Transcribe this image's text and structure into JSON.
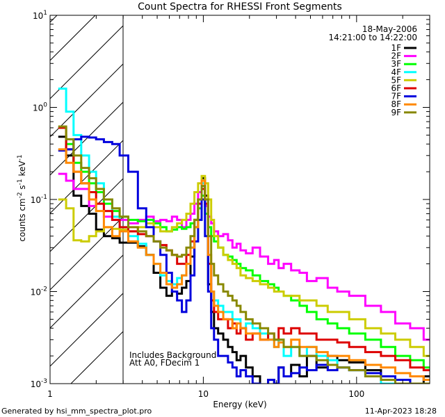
{
  "chart_data": {
    "type": "line",
    "title": "Count Spectra for RHESSI Front Segments",
    "xlabel": "Energy (keV)",
    "ylabel_parts": [
      "counts cm",
      "-2",
      " s",
      "-1",
      " keV",
      "-1"
    ],
    "xscale": "log",
    "yscale": "log",
    "xlim": [
      1,
      300
    ],
    "ylim": [
      0.001,
      10
    ],
    "xtick_labels": [
      {
        "value": 1,
        "label": "1"
      },
      {
        "value": 10,
        "label": "10"
      },
      {
        "value": 100,
        "label": "100"
      }
    ],
    "ytick_labels": [
      {
        "value": 0.001,
        "base": "10",
        "exp": "-3"
      },
      {
        "value": 0.01,
        "base": "10",
        "exp": "-2"
      },
      {
        "value": 0.1,
        "base": "10",
        "exp": "-1"
      },
      {
        "value": 1,
        "base": "10",
        "exp": "0"
      },
      {
        "value": 10,
        "base": "10",
        "exp": "1"
      }
    ],
    "shaded_region": {
      "x_from": 1,
      "x_to": 3,
      "pattern": "diagonal hatch"
    },
    "date_text": "18-May-2006",
    "time_text": "14:21:00 to 14:22:00",
    "annotations": [
      "Includes Background",
      "Att A0, FDecim 1"
    ],
    "footer_left": "Generated by hsi_mm_spectra_plot.pro",
    "footer_right": "11-Apr-2023 18:28",
    "series": [
      {
        "name": "1F",
        "color": "#000000",
        "x": [
          1.2,
          1.35,
          1.5,
          1.7,
          1.9,
          2.1,
          2.4,
          2.7,
          3.0,
          3.5,
          4.0,
          4.5,
          5.0,
          5.5,
          6.0,
          6.5,
          7.0,
          7.5,
          8.0,
          8.5,
          9.0,
          9.5,
          10.0,
          10.5,
          11.0,
          11.5,
          12.0,
          13.0,
          14.0,
          15.0,
          16.0,
          17.0,
          18.0,
          20.0,
          22.0,
          25.0,
          28.0,
          30.0,
          32.0,
          35.0,
          40.0,
          45.0,
          50.0,
          60.0,
          70.0,
          80.0,
          100.0,
          130.0,
          160.0,
          200.0,
          250.0,
          300.0
        ],
        "y": [
          0.48,
          0.3,
          0.11,
          0.085,
          0.07,
          0.047,
          0.04,
          0.038,
          0.034,
          0.034,
          0.031,
          0.025,
          0.016,
          0.011,
          0.009,
          0.01,
          0.0095,
          0.011,
          0.013,
          0.024,
          0.05,
          0.1,
          0.17,
          0.11,
          0.012,
          0.006,
          0.004,
          0.0035,
          0.003,
          0.0025,
          0.0022,
          0.0018,
          0.002,
          0.0015,
          0.0012,
          0.0008,
          0.0011,
          0.0009,
          0.0015,
          0.0012,
          0.0016,
          0.0012,
          0.002,
          0.0015,
          0.002,
          0.0018,
          0.0017,
          0.0014,
          0.0012,
          0.0011,
          0.001,
          0.0012
        ]
      },
      {
        "name": "2F",
        "color": "#ff00ff",
        "x": [
          1.2,
          1.35,
          1.5,
          1.7,
          1.9,
          2.1,
          2.4,
          2.7,
          3.0,
          3.5,
          4.0,
          4.5,
          5.0,
          5.5,
          6.0,
          6.5,
          7.0,
          7.5,
          8.0,
          8.5,
          9.0,
          9.5,
          10.0,
          10.5,
          11.0,
          11.5,
          12.0,
          13.0,
          14.0,
          15.0,
          16.0,
          17.0,
          18.0,
          20.0,
          22.0,
          25.0,
          28.0,
          30.0,
          32.0,
          35.0,
          40.0,
          45.0,
          50.0,
          60.0,
          70.0,
          80.0,
          100.0,
          130.0,
          160.0,
          200.0,
          250.0,
          300.0
        ],
        "y": [
          0.19,
          0.16,
          0.13,
          0.13,
          0.085,
          0.09,
          0.065,
          0.06,
          0.06,
          0.055,
          0.06,
          0.065,
          0.058,
          0.06,
          0.058,
          0.065,
          0.06,
          0.05,
          0.06,
          0.07,
          0.09,
          0.12,
          0.15,
          0.085,
          0.065,
          0.055,
          0.045,
          0.04,
          0.042,
          0.036,
          0.03,
          0.033,
          0.028,
          0.026,
          0.03,
          0.024,
          0.02,
          0.022,
          0.018,
          0.02,
          0.017,
          0.016,
          0.013,
          0.014,
          0.011,
          0.01,
          0.009,
          0.007,
          0.006,
          0.0045,
          0.004,
          0.003
        ]
      },
      {
        "name": "3F",
        "color": "#00ff00",
        "x": [
          1.2,
          1.35,
          1.5,
          1.7,
          1.9,
          2.1,
          2.4,
          2.7,
          3.0,
          3.5,
          4.0,
          4.5,
          5.0,
          5.5,
          6.0,
          6.5,
          7.0,
          7.5,
          8.0,
          8.5,
          9.0,
          9.5,
          10.0,
          10.5,
          11.0,
          11.5,
          12.0,
          13.0,
          14.0,
          15.0,
          16.0,
          17.0,
          18.0,
          20.0,
          22.0,
          25.0,
          28.0,
          30.0,
          32.0,
          35.0,
          40.0,
          45.0,
          50.0,
          60.0,
          70.0,
          80.0,
          100.0,
          130.0,
          160.0,
          200.0,
          250.0,
          300.0
        ],
        "y": [
          0.6,
          0.4,
          0.25,
          0.2,
          0.15,
          0.12,
          0.09,
          0.075,
          0.065,
          0.06,
          0.058,
          0.06,
          0.055,
          0.05,
          0.045,
          0.047,
          0.05,
          0.048,
          0.05,
          0.055,
          0.06,
          0.08,
          0.11,
          0.07,
          0.05,
          0.04,
          0.035,
          0.03,
          0.025,
          0.024,
          0.022,
          0.02,
          0.018,
          0.017,
          0.015,
          0.013,
          0.012,
          0.011,
          0.01,
          0.009,
          0.008,
          0.007,
          0.006,
          0.005,
          0.0045,
          0.004,
          0.0035,
          0.003,
          0.0025,
          0.002,
          0.0018,
          0.0015
        ]
      },
      {
        "name": "4F",
        "color": "#00ffff",
        "x": [
          1.2,
          1.35,
          1.5,
          1.7,
          1.9,
          2.1,
          2.4,
          2.7,
          3.0,
          3.5,
          4.0,
          4.5,
          5.0,
          5.5,
          6.0,
          6.5,
          7.0,
          7.5,
          8.0,
          8.5,
          9.0,
          9.5,
          10.0,
          10.5,
          11.0,
          11.5,
          12.0,
          13.0,
          14.0,
          15.0,
          16.0,
          17.0,
          18.0,
          20.0,
          22.0,
          25.0,
          28.0,
          30.0,
          32.0,
          35.0,
          40.0,
          45.0,
          50.0,
          60.0,
          70.0,
          80.0,
          100.0,
          130.0,
          160.0,
          200.0,
          250.0,
          300.0
        ],
        "y": [
          1.6,
          0.9,
          0.5,
          0.3,
          0.2,
          0.15,
          0.1,
          0.065,
          0.05,
          0.04,
          0.033,
          0.025,
          0.02,
          0.015,
          0.013,
          0.012,
          0.014,
          0.015,
          0.02,
          0.03,
          0.06,
          0.09,
          0.15,
          0.1,
          0.02,
          0.01,
          0.008,
          0.007,
          0.006,
          0.006,
          0.005,
          0.005,
          0.004,
          0.0045,
          0.004,
          0.0035,
          0.003,
          0.0025,
          0.003,
          0.002,
          0.0025,
          0.002,
          0.0025,
          0.002,
          0.0018,
          0.0015,
          0.0014,
          0.0012,
          0.001,
          0.001,
          0.001,
          0.001
        ]
      },
      {
        "name": "5F",
        "color": "#cccc00",
        "x": [
          1.2,
          1.35,
          1.5,
          1.7,
          1.9,
          2.1,
          2.4,
          2.7,
          3.0,
          3.5,
          4.0,
          4.5,
          5.0,
          5.5,
          6.0,
          6.5,
          7.0,
          7.5,
          8.0,
          8.5,
          9.0,
          9.5,
          10.0,
          10.5,
          11.0,
          11.5,
          12.0,
          13.0,
          14.0,
          15.0,
          16.0,
          17.0,
          18.0,
          20.0,
          22.0,
          25.0,
          28.0,
          30.0,
          32.0,
          35.0,
          40.0,
          45.0,
          50.0,
          60.0,
          70.0,
          80.0,
          100.0,
          130.0,
          160.0,
          200.0,
          250.0,
          300.0
        ],
        "y": [
          0.1,
          0.08,
          0.036,
          0.035,
          0.04,
          0.045,
          0.05,
          0.048,
          0.047,
          0.045,
          0.05,
          0.055,
          0.05,
          0.045,
          0.045,
          0.05,
          0.055,
          0.06,
          0.07,
          0.09,
          0.12,
          0.15,
          0.18,
          0.15,
          0.1,
          0.06,
          0.04,
          0.03,
          0.025,
          0.022,
          0.02,
          0.018,
          0.015,
          0.014,
          0.013,
          0.012,
          0.011,
          0.01,
          0.01,
          0.009,
          0.009,
          0.008,
          0.008,
          0.007,
          0.006,
          0.006,
          0.005,
          0.004,
          0.0035,
          0.003,
          0.0025,
          0.002
        ]
      },
      {
        "name": "6F",
        "color": "#dd0000",
        "x": [
          1.2,
          1.35,
          1.5,
          1.7,
          1.9,
          2.1,
          2.4,
          2.7,
          3.0,
          3.5,
          4.0,
          4.5,
          5.0,
          5.5,
          6.0,
          6.5,
          7.0,
          7.5,
          8.0,
          8.5,
          9.0,
          9.5,
          10.0,
          10.5,
          11.0,
          11.5,
          12.0,
          13.0,
          14.0,
          15.0,
          16.0,
          17.0,
          18.0,
          20.0,
          22.0,
          25.0,
          28.0,
          30.0,
          32.0,
          35.0,
          40.0,
          45.0,
          50.0,
          60.0,
          70.0,
          80.0,
          100.0,
          130.0,
          160.0,
          200.0,
          250.0,
          300.0
        ],
        "y": [
          0.6,
          0.35,
          0.2,
          0.15,
          0.12,
          0.09,
          0.075,
          0.06,
          0.05,
          0.045,
          0.042,
          0.04,
          0.035,
          0.032,
          0.028,
          0.025,
          0.02,
          0.02,
          0.025,
          0.035,
          0.06,
          0.09,
          0.13,
          0.09,
          0.02,
          0.008,
          0.006,
          0.005,
          0.005,
          0.004,
          0.0045,
          0.0035,
          0.004,
          0.003,
          0.0035,
          0.003,
          0.0035,
          0.003,
          0.004,
          0.0035,
          0.004,
          0.0035,
          0.0035,
          0.003,
          0.003,
          0.0028,
          0.0025,
          0.0022,
          0.002,
          0.0018,
          0.0015,
          0.0014
        ]
      },
      {
        "name": "7F",
        "color": "#0000dd",
        "x": [
          1.2,
          1.35,
          1.5,
          1.7,
          1.9,
          2.1,
          2.4,
          2.7,
          3.0,
          3.5,
          4.0,
          4.5,
          5.0,
          5.5,
          6.0,
          6.5,
          7.0,
          7.5,
          8.0,
          8.5,
          9.0,
          9.5,
          10.0,
          10.5,
          11.0,
          11.5,
          12.0,
          13.0,
          14.0,
          15.0,
          16.0,
          17.0,
          18.0,
          20.0,
          22.0,
          25.0,
          28.0,
          30.0,
          32.0,
          35.0,
          40.0,
          45.0,
          50.0,
          60.0,
          70.0,
          80.0,
          100.0,
          130.0,
          160.0,
          200.0,
          250.0,
          300.0
        ],
        "y": [
          0.34,
          0.35,
          0.45,
          0.48,
          0.47,
          0.45,
          0.42,
          0.4,
          0.3,
          0.2,
          0.08,
          0.05,
          0.035,
          0.025,
          0.016,
          0.01,
          0.008,
          0.006,
          0.008,
          0.015,
          0.035,
          0.06,
          0.1,
          0.04,
          0.01,
          0.004,
          0.003,
          0.002,
          0.002,
          0.0017,
          0.0015,
          0.0012,
          0.0014,
          0.0012,
          0.001,
          0.0009,
          0.0011,
          0.001,
          0.0015,
          0.0012,
          0.0013,
          0.0015,
          0.0014,
          0.0016,
          0.0014,
          0.0015,
          0.0014,
          0.0013,
          0.0012,
          0.0011,
          0.001,
          0.001
        ]
      },
      {
        "name": "8F",
        "color": "#ff8800",
        "x": [
          1.2,
          1.35,
          1.5,
          1.7,
          1.9,
          2.1,
          2.4,
          2.7,
          3.0,
          3.5,
          4.0,
          4.5,
          5.0,
          5.5,
          6.0,
          6.5,
          7.0,
          7.5,
          8.0,
          8.5,
          9.0,
          9.5,
          10.0,
          10.5,
          11.0,
          11.5,
          12.0,
          13.0,
          14.0,
          15.0,
          16.0,
          17.0,
          18.0,
          20.0,
          22.0,
          25.0,
          28.0,
          30.0,
          32.0,
          35.0,
          40.0,
          45.0,
          50.0,
          60.0,
          70.0,
          80.0,
          100.0,
          130.0,
          160.0,
          200.0,
          250.0,
          300.0
        ],
        "y": [
          0.35,
          0.25,
          0.2,
          0.15,
          0.1,
          0.075,
          0.05,
          0.04,
          0.045,
          0.035,
          0.03,
          0.025,
          0.02,
          0.016,
          0.012,
          0.011,
          0.012,
          0.015,
          0.02,
          0.03,
          0.05,
          0.1,
          0.16,
          0.1,
          0.025,
          0.01,
          0.007,
          0.006,
          0.005,
          0.005,
          0.004,
          0.0045,
          0.004,
          0.0035,
          0.0035,
          0.003,
          0.003,
          0.0025,
          0.0028,
          0.0025,
          0.003,
          0.0025,
          0.0025,
          0.0022,
          0.002,
          0.002,
          0.0018,
          0.0016,
          0.0015,
          0.0013,
          0.0012,
          0.0011
        ]
      },
      {
        "name": "9F",
        "color": "#888800",
        "x": [
          1.2,
          1.35,
          1.5,
          1.7,
          1.9,
          2.1,
          2.4,
          2.7,
          3.0,
          3.5,
          4.0,
          4.5,
          5.0,
          5.5,
          6.0,
          6.5,
          7.0,
          7.5,
          8.0,
          8.5,
          9.0,
          9.5,
          10.0,
          10.5,
          11.0,
          11.5,
          12.0,
          13.0,
          14.0,
          15.0,
          16.0,
          17.0,
          18.0,
          20.0,
          22.0,
          25.0,
          28.0,
          30.0,
          32.0,
          35.0,
          40.0,
          45.0,
          50.0,
          60.0,
          70.0,
          80.0,
          100.0,
          130.0,
          160.0,
          200.0,
          250.0,
          300.0
        ],
        "y": [
          0.62,
          0.45,
          0.3,
          0.22,
          0.17,
          0.13,
          0.1,
          0.08,
          0.065,
          0.05,
          0.045,
          0.04,
          0.035,
          0.03,
          0.028,
          0.025,
          0.024,
          0.025,
          0.03,
          0.04,
          0.06,
          0.1,
          0.14,
          0.1,
          0.04,
          0.02,
          0.015,
          0.012,
          0.01,
          0.009,
          0.008,
          0.007,
          0.006,
          0.005,
          0.0045,
          0.004,
          0.0035,
          0.003,
          0.003,
          0.0025,
          0.0025,
          0.002,
          0.002,
          0.0018,
          0.0016,
          0.0015,
          0.0014,
          0.0012,
          0.0011,
          0.001,
          0.001,
          0.001
        ]
      }
    ]
  }
}
